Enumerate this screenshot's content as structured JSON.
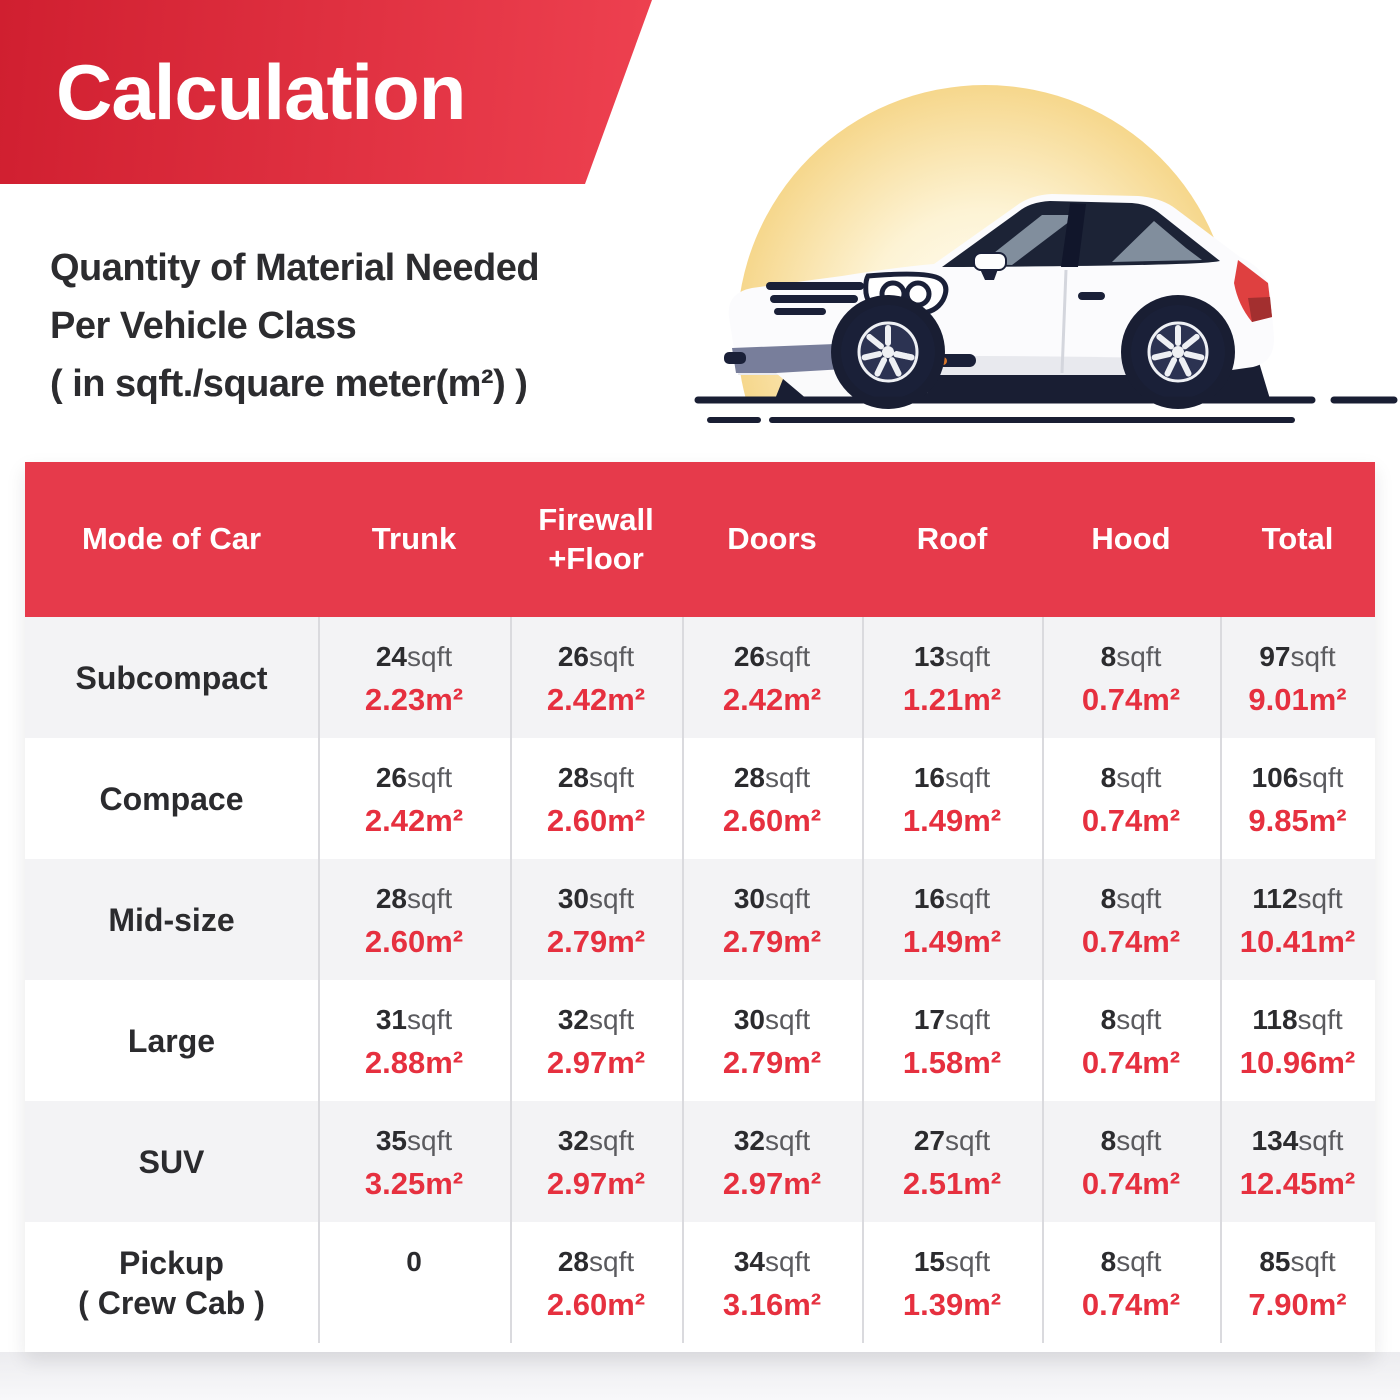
{
  "banner": {
    "title": "Calculation"
  },
  "subtitle": {
    "lines": [
      "Quantity of Material Needed",
      "Per Vehicle Class",
      "( in sqft./square meter(m²) )"
    ]
  },
  "illustration": {
    "name": "white-hatchback-car-with-yellow-glow"
  },
  "colors": {
    "banner_red_start": "#d01f30",
    "banner_red_end": "#ee4150",
    "header_red": "#e63a4b",
    "value_red": "#e6303f",
    "dark_text": "#2b2b2e",
    "unit_gray": "#5b5b5f",
    "row_gray": "#f3f3f5",
    "ground_navy": "#191e33"
  },
  "table": {
    "columns": [
      "Mode of Car",
      "Trunk",
      "Firewall +Floor",
      "Doors",
      "Roof",
      "Hood",
      "Total"
    ],
    "unit_sqft": "sqft",
    "rows": [
      {
        "label": "Subcompact",
        "cells": [
          {
            "sqft": "24",
            "m2": "2.23m²"
          },
          {
            "sqft": "26",
            "m2": "2.42m²"
          },
          {
            "sqft": "26",
            "m2": "2.42m²"
          },
          {
            "sqft": "13",
            "m2": "1.21m²"
          },
          {
            "sqft": "8",
            "m2": "0.74m²"
          },
          {
            "sqft": "97",
            "m2": "9.01m²"
          }
        ]
      },
      {
        "label": "Compace",
        "cells": [
          {
            "sqft": "26",
            "m2": "2.42m²"
          },
          {
            "sqft": "28",
            "m2": "2.60m²"
          },
          {
            "sqft": "28",
            "m2": "2.60m²"
          },
          {
            "sqft": "16",
            "m2": "1.49m²"
          },
          {
            "sqft": "8",
            "m2": "0.74m²"
          },
          {
            "sqft": "106",
            "m2": "9.85m²"
          }
        ]
      },
      {
        "label": "Mid-size",
        "cells": [
          {
            "sqft": "28",
            "m2": "2.60m²"
          },
          {
            "sqft": "30",
            "m2": "2.79m²"
          },
          {
            "sqft": "30",
            "m2": "2.79m²"
          },
          {
            "sqft": "16",
            "m2": "1.49m²"
          },
          {
            "sqft": "8",
            "m2": "0.74m²"
          },
          {
            "sqft": "112",
            "m2": "10.41m²"
          }
        ]
      },
      {
        "label": "Large",
        "cells": [
          {
            "sqft": "31",
            "m2": "2.88m²"
          },
          {
            "sqft": "32",
            "m2": "2.97m²"
          },
          {
            "sqft": "30",
            "m2": "2.79m²"
          },
          {
            "sqft": "17",
            "m2": "1.58m²"
          },
          {
            "sqft": "8",
            "m2": "0.74m²"
          },
          {
            "sqft": "118",
            "m2": "10.96m²"
          }
        ]
      },
      {
        "label": "SUV",
        "cells": [
          {
            "sqft": "35",
            "m2": "3.25m²"
          },
          {
            "sqft": "32",
            "m2": "2.97m²"
          },
          {
            "sqft": "32",
            "m2": "2.97m²"
          },
          {
            "sqft": "27",
            "m2": "2.51m²"
          },
          {
            "sqft": "8",
            "m2": "0.74m²"
          },
          {
            "sqft": "134",
            "m2": "12.45m²"
          }
        ]
      },
      {
        "label": "Pickup\n( Crew Cab )",
        "cells": [
          {
            "sqft": "0",
            "m2": ""
          },
          {
            "sqft": "28",
            "m2": "2.60m²"
          },
          {
            "sqft": "34",
            "m2": "3.16m²"
          },
          {
            "sqft": "15",
            "m2": "1.39m²"
          },
          {
            "sqft": "8",
            "m2": "0.74m²"
          },
          {
            "sqft": "85",
            "m2": "7.90m²"
          }
        ]
      }
    ]
  },
  "chart_data": {
    "type": "table",
    "title": "Quantity of Material Needed Per Vehicle Class ( in sqft./square meter(m²) )",
    "units": [
      "sqft",
      "m²"
    ],
    "columns": [
      "Trunk",
      "Firewall +Floor",
      "Doors",
      "Roof",
      "Hood",
      "Total"
    ],
    "rows": [
      {
        "mode": "Subcompact",
        "sqft": [
          24,
          26,
          26,
          13,
          8,
          97
        ],
        "m2": [
          2.23,
          2.42,
          2.42,
          1.21,
          0.74,
          9.01
        ]
      },
      {
        "mode": "Compace",
        "sqft": [
          26,
          28,
          28,
          16,
          8,
          106
        ],
        "m2": [
          2.42,
          2.6,
          2.6,
          1.49,
          0.74,
          9.85
        ]
      },
      {
        "mode": "Mid-size",
        "sqft": [
          28,
          30,
          30,
          16,
          8,
          112
        ],
        "m2": [
          2.6,
          2.79,
          2.79,
          1.49,
          0.74,
          10.41
        ]
      },
      {
        "mode": "Large",
        "sqft": [
          31,
          32,
          30,
          17,
          8,
          118
        ],
        "m2": [
          2.88,
          2.97,
          2.79,
          1.58,
          0.74,
          10.96
        ]
      },
      {
        "mode": "SUV",
        "sqft": [
          35,
          32,
          32,
          27,
          8,
          134
        ],
        "m2": [
          3.25,
          2.97,
          2.97,
          2.51,
          0.74,
          12.45
        ]
      },
      {
        "mode": "Pickup ( Crew Cab )",
        "sqft": [
          0,
          28,
          34,
          15,
          8,
          85
        ],
        "m2": [
          null,
          2.6,
          3.16,
          1.39,
          0.74,
          7.9
        ]
      }
    ]
  }
}
